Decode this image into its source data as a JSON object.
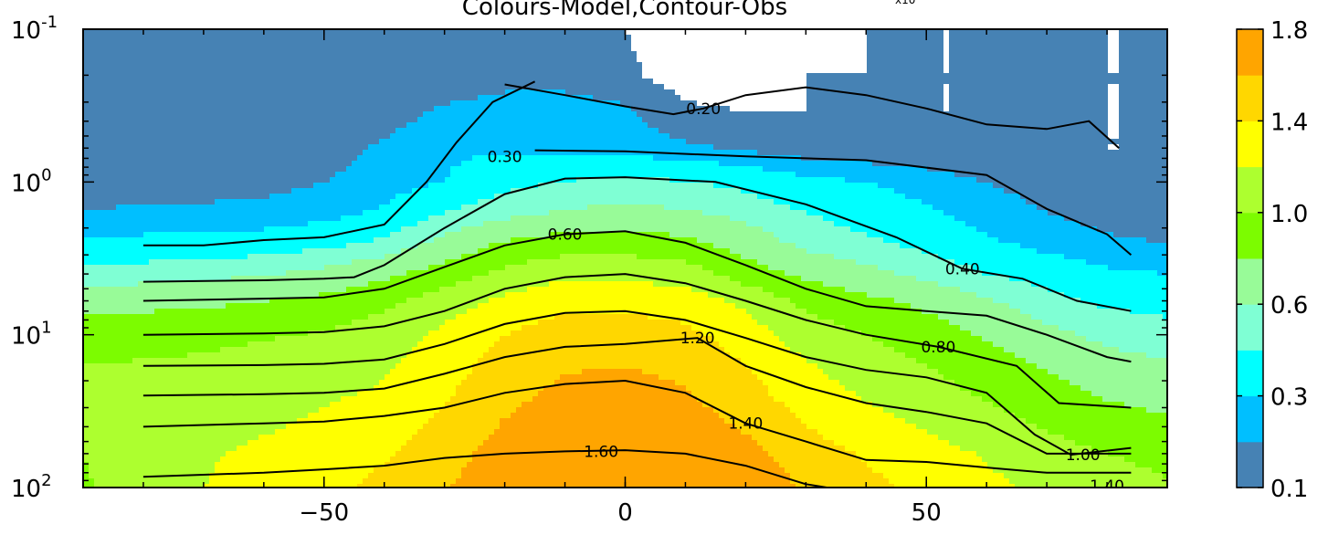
{
  "chart_data": {
    "type": "filled-contour",
    "title": "Colours-Model,Contour-Obs",
    "title_superscript": "x10",
    "xlabel": "",
    "ylabel": "",
    "xlim": [
      -90,
      90
    ],
    "ylim": [
      100,
      0.1
    ],
    "y_scale": "log",
    "x_ticks": [
      {
        "value": -50,
        "label": "−50"
      },
      {
        "value": 0,
        "label": "0"
      },
      {
        "value": 50,
        "label": "50"
      }
    ],
    "y_ticks": [
      {
        "value": 0.1,
        "base": "10",
        "exp": "-1"
      },
      {
        "value": 1,
        "base": "10",
        "exp": "0"
      },
      {
        "value": 10,
        "base": "10",
        "exp": "1"
      },
      {
        "value": 100,
        "base": "10",
        "exp": "2"
      }
    ],
    "colorbar": {
      "levels": [
        0.1,
        0.2,
        0.3,
        0.45,
        0.6,
        0.8,
        1.0,
        1.2,
        1.4,
        1.6,
        1.8
      ],
      "colors": [
        "#4682b4",
        "#00bfff",
        "#00ffff",
        "#7fffd4",
        "#98fb98",
        "#7cfc00",
        "#adff2f",
        "#ffff00",
        "#ffd700",
        "#ffa500"
      ],
      "tick_labels": [
        {
          "value": 0.1,
          "label": "0.1"
        },
        {
          "value": 0.3,
          "label": "0.3"
        },
        {
          "value": 0.6,
          "label": "0.6"
        },
        {
          "value": 1.0,
          "label": "1.0"
        },
        {
          "value": 1.4,
          "label": "1.4"
        },
        {
          "value": 1.8,
          "label": "1.8"
        }
      ]
    },
    "model_field": {
      "x": [
        -90,
        -80,
        -70,
        -60,
        -50,
        -40,
        -30,
        -20,
        -10,
        0,
        10,
        20,
        30,
        40,
        50,
        60,
        70,
        80,
        90
      ],
      "y": [
        0.1,
        0.2,
        0.35,
        0.6,
        1,
        1.6,
        2.5,
        4,
        6,
        10,
        16,
        25,
        40,
        60,
        100
      ],
      "z": [
        [
          0.1,
          0.1,
          0.1,
          0.1,
          0.1,
          0.1,
          0.1,
          0.1,
          0.1,
          0.1,
          0.05,
          0.05,
          0.05,
          0.1,
          0.1,
          0.1,
          0.1,
          0.1,
          0.1
        ],
        [
          0.1,
          0.1,
          0.1,
          0.1,
          0.1,
          0.1,
          0.12,
          0.15,
          0.15,
          0.12,
          0.05,
          0.05,
          0.1,
          0.1,
          0.1,
          0.1,
          0.1,
          0.1,
          0.1
        ],
        [
          0.1,
          0.1,
          0.1,
          0.1,
          0.1,
          0.15,
          0.22,
          0.26,
          0.26,
          0.22,
          0.12,
          0.1,
          0.1,
          0.1,
          0.1,
          0.1,
          0.1,
          0.1,
          0.1
        ],
        [
          0.1,
          0.1,
          0.1,
          0.1,
          0.15,
          0.22,
          0.28,
          0.28,
          0.26,
          0.24,
          0.22,
          0.18,
          0.14,
          0.12,
          0.12,
          0.1,
          0.1,
          0.1,
          0.1
        ],
        [
          0.15,
          0.15,
          0.16,
          0.17,
          0.2,
          0.25,
          0.3,
          0.4,
          0.46,
          0.48,
          0.46,
          0.4,
          0.33,
          0.3,
          0.25,
          0.2,
          0.16,
          0.12,
          0.1
        ],
        [
          0.2,
          0.22,
          0.22,
          0.23,
          0.26,
          0.32,
          0.45,
          0.55,
          0.62,
          0.65,
          0.62,
          0.55,
          0.45,
          0.38,
          0.32,
          0.25,
          0.2,
          0.16,
          0.12
        ],
        [
          0.32,
          0.33,
          0.34,
          0.36,
          0.4,
          0.48,
          0.65,
          0.82,
          0.9,
          0.9,
          0.85,
          0.7,
          0.55,
          0.48,
          0.4,
          0.32,
          0.26,
          0.22,
          0.2
        ],
        [
          0.5,
          0.52,
          0.55,
          0.58,
          0.65,
          0.75,
          0.9,
          1.05,
          1.15,
          1.15,
          1.1,
          0.9,
          0.75,
          0.65,
          0.55,
          0.45,
          0.38,
          0.32,
          0.3
        ],
        [
          0.72,
          0.74,
          0.76,
          0.8,
          0.85,
          0.95,
          1.1,
          1.25,
          1.35,
          1.35,
          1.3,
          1.15,
          0.95,
          0.85,
          0.75,
          0.62,
          0.5,
          0.42,
          0.4
        ],
        [
          0.9,
          0.92,
          0.94,
          0.98,
          1.02,
          1.1,
          1.25,
          1.4,
          1.5,
          1.5,
          1.45,
          1.3,
          1.1,
          1.0,
          0.9,
          0.78,
          0.65,
          0.55,
          0.5
        ],
        [
          1.0,
          1.02,
          1.04,
          1.08,
          1.12,
          1.18,
          1.32,
          1.48,
          1.58,
          1.6,
          1.55,
          1.4,
          1.22,
          1.1,
          1.0,
          0.9,
          0.78,
          0.68,
          0.62
        ],
        [
          1.02,
          1.05,
          1.08,
          1.12,
          1.18,
          1.22,
          1.38,
          1.55,
          1.65,
          1.68,
          1.62,
          1.48,
          1.3,
          1.18,
          1.08,
          0.98,
          0.88,
          0.78,
          0.72
        ],
        [
          1.02,
          1.08,
          1.12,
          1.18,
          1.24,
          1.3,
          1.45,
          1.62,
          1.72,
          1.75,
          1.7,
          1.58,
          1.4,
          1.28,
          1.18,
          1.08,
          0.98,
          0.9,
          0.85
        ],
        [
          1.0,
          1.1,
          1.18,
          1.24,
          1.3,
          1.38,
          1.52,
          1.68,
          1.8,
          1.85,
          1.8,
          1.66,
          1.5,
          1.38,
          1.28,
          1.18,
          1.08,
          1.0,
          0.95
        ],
        [
          0.98,
          1.1,
          1.2,
          1.28,
          1.35,
          1.45,
          1.58,
          1.74,
          1.86,
          1.92,
          1.88,
          1.74,
          1.58,
          1.45,
          1.35,
          1.25,
          1.15,
          1.08,
          1.02
        ]
      ]
    },
    "observed_contours": [
      {
        "level": 0.2,
        "label": "0.20",
        "label_at": [
          13,
          0.33
        ],
        "points": [
          [
            -20,
            0.23
          ],
          [
            -10,
            0.27
          ],
          [
            0,
            0.32
          ],
          [
            8,
            0.36
          ],
          [
            13,
            0.33
          ],
          [
            20,
            0.27
          ],
          [
            30,
            0.24
          ],
          [
            40,
            0.27
          ],
          [
            50,
            0.33
          ],
          [
            60,
            0.42
          ],
          [
            70,
            0.45
          ],
          [
            77,
            0.4
          ],
          [
            82,
            0.6
          ]
        ]
      },
      {
        "level": 0.3,
        "label": "0.30",
        "label_at": [
          -20,
          0.68
        ],
        "points": [
          [
            -80,
            2.6
          ],
          [
            -70,
            2.6
          ],
          [
            -60,
            2.4
          ],
          [
            -50,
            2.3
          ],
          [
            -40,
            1.9
          ],
          [
            -33,
            1.0
          ],
          [
            -28,
            0.55
          ],
          [
            -22,
            0.3
          ],
          [
            -15,
            0.22
          ]
        ]
      },
      {
        "level": 0.3,
        "label": "",
        "label_at": null,
        "points": [
          [
            -15,
            0.62
          ],
          [
            0,
            0.63
          ],
          [
            20,
            0.68
          ],
          [
            40,
            0.72
          ],
          [
            60,
            0.9
          ],
          [
            70,
            1.5
          ],
          [
            80,
            2.2
          ],
          [
            84,
            3.0
          ]
        ]
      },
      {
        "level": 0.4,
        "label": "0.40",
        "label_at": [
          56,
          3.7
        ],
        "points": [
          [
            -80,
            4.5
          ],
          [
            -60,
            4.4
          ],
          [
            -50,
            4.3
          ],
          [
            -45,
            4.2
          ],
          [
            -40,
            3.5
          ],
          [
            -30,
            2.0
          ],
          [
            -20,
            1.2
          ],
          [
            -10,
            0.95
          ],
          [
            0,
            0.93
          ],
          [
            15,
            1.0
          ],
          [
            30,
            1.4
          ],
          [
            45,
            2.3
          ],
          [
            56,
            3.7
          ],
          [
            66,
            4.3
          ],
          [
            75,
            6.0
          ],
          [
            84,
            7.0
          ]
        ]
      },
      {
        "level": 0.6,
        "label": "0.60",
        "label_at": [
          -10,
          2.2
        ],
        "points": [
          [
            -80,
            6.0
          ],
          [
            -60,
            5.8
          ],
          [
            -50,
            5.7
          ],
          [
            -40,
            5.0
          ],
          [
            -30,
            3.6
          ],
          [
            -20,
            2.6
          ],
          [
            -10,
            2.2
          ],
          [
            0,
            2.1
          ],
          [
            10,
            2.5
          ],
          [
            20,
            3.5
          ],
          [
            30,
            5.0
          ],
          [
            40,
            6.5
          ],
          [
            50,
            7.0
          ],
          [
            60,
            7.5
          ],
          [
            70,
            10.0
          ],
          [
            80,
            14.0
          ],
          [
            84,
            15.0
          ]
        ]
      },
      {
        "level": 0.8,
        "label": "0.80",
        "label_at": [
          52,
          12.0
        ],
        "points": [
          [
            -80,
            10.0
          ],
          [
            -60,
            9.8
          ],
          [
            -50,
            9.6
          ],
          [
            -40,
            8.8
          ],
          [
            -30,
            7.0
          ],
          [
            -20,
            5.0
          ],
          [
            -10,
            4.2
          ],
          [
            0,
            4.0
          ],
          [
            10,
            4.6
          ],
          [
            20,
            6.0
          ],
          [
            30,
            8.0
          ],
          [
            40,
            10.0
          ],
          [
            52,
            12.0
          ],
          [
            65,
            16.0
          ],
          [
            72,
            28.0
          ],
          [
            84,
            30.0
          ]
        ]
      },
      {
        "level": 1.0,
        "label": "1.00",
        "label_at": [
          76,
          61.0
        ],
        "points": [
          [
            -80,
            16.0
          ],
          [
            -60,
            15.8
          ],
          [
            -50,
            15.5
          ],
          [
            -40,
            14.5
          ],
          [
            -30,
            11.5
          ],
          [
            -20,
            8.5
          ],
          [
            -10,
            7.2
          ],
          [
            0,
            7.0
          ],
          [
            10,
            8.0
          ],
          [
            20,
            10.5
          ],
          [
            30,
            14.0
          ],
          [
            40,
            17.0
          ],
          [
            50,
            19.0
          ],
          [
            60,
            24.0
          ],
          [
            68,
            45.0
          ],
          [
            74,
            61.0
          ],
          [
            84,
            55.0
          ]
        ]
      },
      {
        "level": 1.2,
        "label": "1.20",
        "label_at": [
          12,
          10.5
        ],
        "points": [
          [
            -80,
            25.0
          ],
          [
            -60,
            24.5
          ],
          [
            -50,
            24.0
          ],
          [
            -40,
            22.5
          ],
          [
            -30,
            18.0
          ],
          [
            -20,
            14.0
          ],
          [
            -10,
            12.0
          ],
          [
            0,
            11.5
          ],
          [
            12,
            10.5
          ],
          [
            20,
            16.0
          ],
          [
            30,
            22.0
          ],
          [
            40,
            28.0
          ],
          [
            50,
            32.0
          ],
          [
            60,
            38.0
          ],
          [
            70,
            60.0
          ],
          [
            84,
            60.0
          ]
        ]
      },
      {
        "level": 1.4,
        "label": "1.40",
        "label_at": [
          20,
          38.0
        ],
        "points": [
          [
            -80,
            40.0
          ],
          [
            -60,
            38.0
          ],
          [
            -50,
            37.0
          ],
          [
            -40,
            34.0
          ],
          [
            -30,
            30.0
          ],
          [
            -20,
            24.0
          ],
          [
            -10,
            21.0
          ],
          [
            0,
            20.0
          ],
          [
            10,
            24.0
          ],
          [
            20,
            38.0
          ],
          [
            30,
            50.0
          ],
          [
            40,
            66.0
          ],
          [
            50,
            68.0
          ],
          [
            60,
            74.0
          ],
          [
            70,
            80.0
          ],
          [
            84,
            80.0
          ]
        ]
      },
      {
        "level": 1.6,
        "label": "1.60",
        "label_at": [
          -4,
          58.0
        ],
        "points": [
          [
            -80,
            85.0
          ],
          [
            -60,
            80.0
          ],
          [
            -50,
            76.0
          ],
          [
            -40,
            72.0
          ],
          [
            -30,
            64.0
          ],
          [
            -20,
            60.0
          ],
          [
            -10,
            58.0
          ],
          [
            0,
            57.0
          ],
          [
            10,
            60.0
          ],
          [
            20,
            72.0
          ],
          [
            30,
            95.0
          ],
          [
            40,
            110.0
          ]
        ]
      }
    ],
    "bottom_partial_label": "1.40"
  }
}
